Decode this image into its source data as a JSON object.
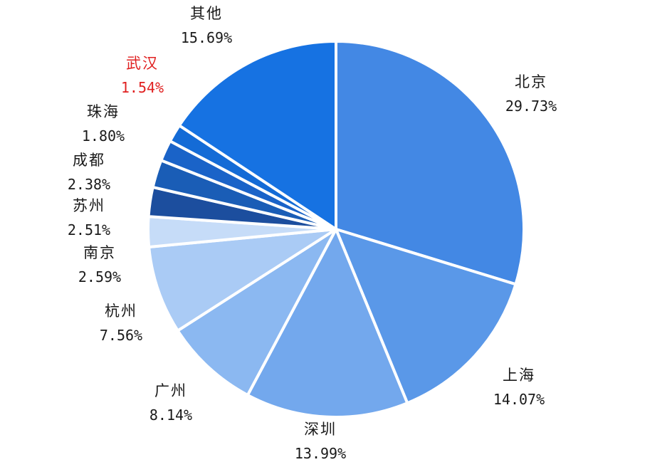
{
  "chart_data": {
    "type": "pie",
    "title": "",
    "start_angle_deg": 0,
    "direction": "clockwise",
    "slices": [
      {
        "name": "北京",
        "value": 29.73,
        "label": "29.73%",
        "color": "#4388e4",
        "highlight": false
      },
      {
        "name": "上海",
        "value": 14.07,
        "label": "14.07%",
        "color": "#5a98e8",
        "highlight": false
      },
      {
        "name": "深圳",
        "value": 13.99,
        "label": "13.99%",
        "color": "#73a8ed",
        "highlight": false
      },
      {
        "name": "广州",
        "value": 8.14,
        "label": "8.14%",
        "color": "#8bb8f1",
        "highlight": false
      },
      {
        "name": "杭州",
        "value": 7.56,
        "label": "7.56%",
        "color": "#aacbf5",
        "highlight": false
      },
      {
        "name": "南京",
        "value": 2.59,
        "label": "2.59%",
        "color": "#c6dcf8",
        "highlight": false
      },
      {
        "name": "苏州",
        "value": 2.51,
        "label": "2.51%",
        "color": "#1c4e9e",
        "highlight": false
      },
      {
        "name": "成都",
        "value": 2.38,
        "label": "2.38%",
        "color": "#1a5db6",
        "highlight": false
      },
      {
        "name": "珠海",
        "value": 1.8,
        "label": "1.80%",
        "color": "#1a63c8",
        "highlight": false
      },
      {
        "name": "武汉",
        "value": 1.54,
        "label": "1.54%",
        "color": "#146bd6",
        "highlight": true
      },
      {
        "name": "其他",
        "value": 15.69,
        "label": "15.69%",
        "color": "#1672e2",
        "highlight": false
      }
    ]
  }
}
